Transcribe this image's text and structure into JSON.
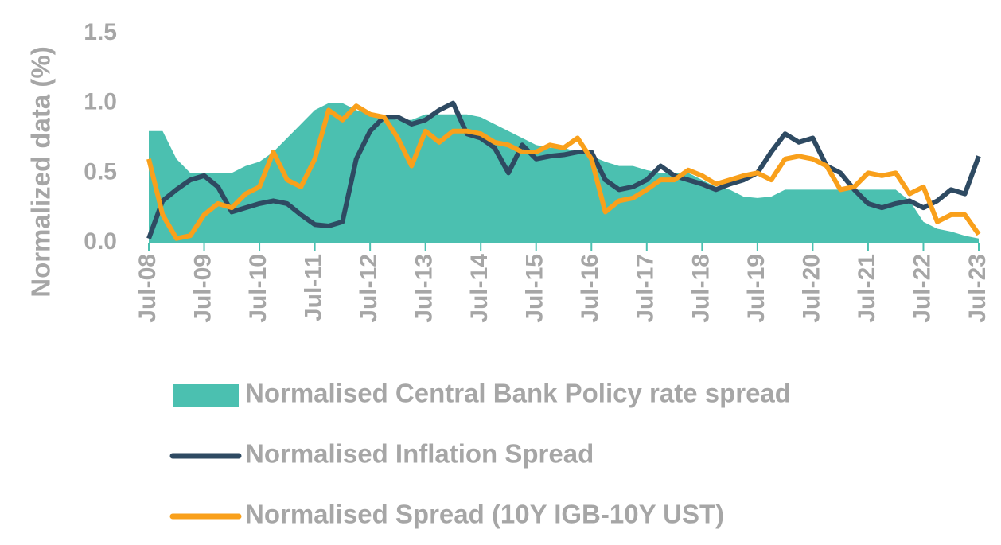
{
  "chart_data": {
    "type": "line",
    "y_label": "Normalized data (%)",
    "categories": [
      "Jul-08",
      null,
      null,
      null,
      "Jul-09",
      null,
      null,
      null,
      "Jul-10",
      null,
      null,
      null,
      "Jul-11",
      null,
      null,
      null,
      "Jul-12",
      null,
      null,
      null,
      "Jul-13",
      null,
      null,
      null,
      "Jul-14",
      null,
      null,
      null,
      "Jul-15",
      null,
      null,
      null,
      "Jul-16",
      null,
      null,
      null,
      "Jul-17",
      null,
      null,
      null,
      "Jul-18",
      null,
      null,
      null,
      "Jul-19",
      null,
      null,
      null,
      "Jul-20",
      null,
      null,
      null,
      "Jul-21",
      null,
      null,
      null,
      "Jul-22",
      null,
      null,
      null,
      "Jul-23"
    ],
    "ylim": [
      0,
      1.5
    ],
    "yticks": [
      {
        "value": 0,
        "label": "0.0"
      },
      0.5,
      {
        "value": 1,
        "label": "1.0"
      },
      1.5
    ],
    "series": [
      {
        "name": "Normalised Central Bank Policy rate spread",
        "style": "area",
        "color": "#4bc0b0",
        "values": [
          0.8,
          0.8,
          0.6,
          0.5,
          0.5,
          0.5,
          0.5,
          0.55,
          0.58,
          0.65,
          0.75,
          0.85,
          0.95,
          1.0,
          1.0,
          0.95,
          0.92,
          0.9,
          0.88,
          0.88,
          0.92,
          0.92,
          0.92,
          0.92,
          0.9,
          0.85,
          0.8,
          0.75,
          0.7,
          0.68,
          0.68,
          0.65,
          0.62,
          0.58,
          0.55,
          0.55,
          0.52,
          0.5,
          0.5,
          0.5,
          0.45,
          0.4,
          0.38,
          0.33,
          0.32,
          0.33,
          0.38,
          0.38,
          0.38,
          0.38,
          0.38,
          0.38,
          0.38,
          0.38,
          0.38,
          0.3,
          0.15,
          0.1,
          0.08,
          0.05,
          0.03
        ]
      },
      {
        "name": "Normalised Inflation Spread",
        "style": "line",
        "color": "#2e4a62",
        "values": [
          0.03,
          0.3,
          0.38,
          0.45,
          0.48,
          0.4,
          0.22,
          0.25,
          0.28,
          0.3,
          0.28,
          0.2,
          0.13,
          0.12,
          0.15,
          0.6,
          0.8,
          0.9,
          0.9,
          0.85,
          0.88,
          0.95,
          1.0,
          0.78,
          0.75,
          0.68,
          0.5,
          0.7,
          0.6,
          0.62,
          0.63,
          0.65,
          0.65,
          0.45,
          0.38,
          0.4,
          0.45,
          0.55,
          0.48,
          0.45,
          0.42,
          0.38,
          0.42,
          0.45,
          0.5,
          0.65,
          0.78,
          0.72,
          0.75,
          0.55,
          0.5,
          0.38,
          0.28,
          0.25,
          0.28,
          0.3,
          0.25,
          0.3,
          0.38,
          0.35,
          0.62
        ]
      },
      {
        "name": "Normalised Spread (10Y IGB-10Y UST)",
        "style": "line",
        "color": "#f9a01b",
        "values": [
          0.6,
          0.2,
          0.03,
          0.05,
          0.2,
          0.28,
          0.25,
          0.35,
          0.4,
          0.65,
          0.45,
          0.4,
          0.6,
          0.95,
          0.88,
          0.98,
          0.92,
          0.9,
          0.75,
          0.55,
          0.8,
          0.72,
          0.8,
          0.8,
          0.78,
          0.72,
          0.7,
          0.65,
          0.65,
          0.7,
          0.68,
          0.75,
          0.6,
          0.22,
          0.3,
          0.32,
          0.38,
          0.45,
          0.45,
          0.52,
          0.48,
          0.42,
          0.45,
          0.48,
          0.5,
          0.45,
          0.6,
          0.62,
          0.6,
          0.55,
          0.38,
          0.4,
          0.5,
          0.48,
          0.5,
          0.35,
          0.4,
          0.15,
          0.2,
          0.2,
          0.06
        ]
      }
    ]
  }
}
